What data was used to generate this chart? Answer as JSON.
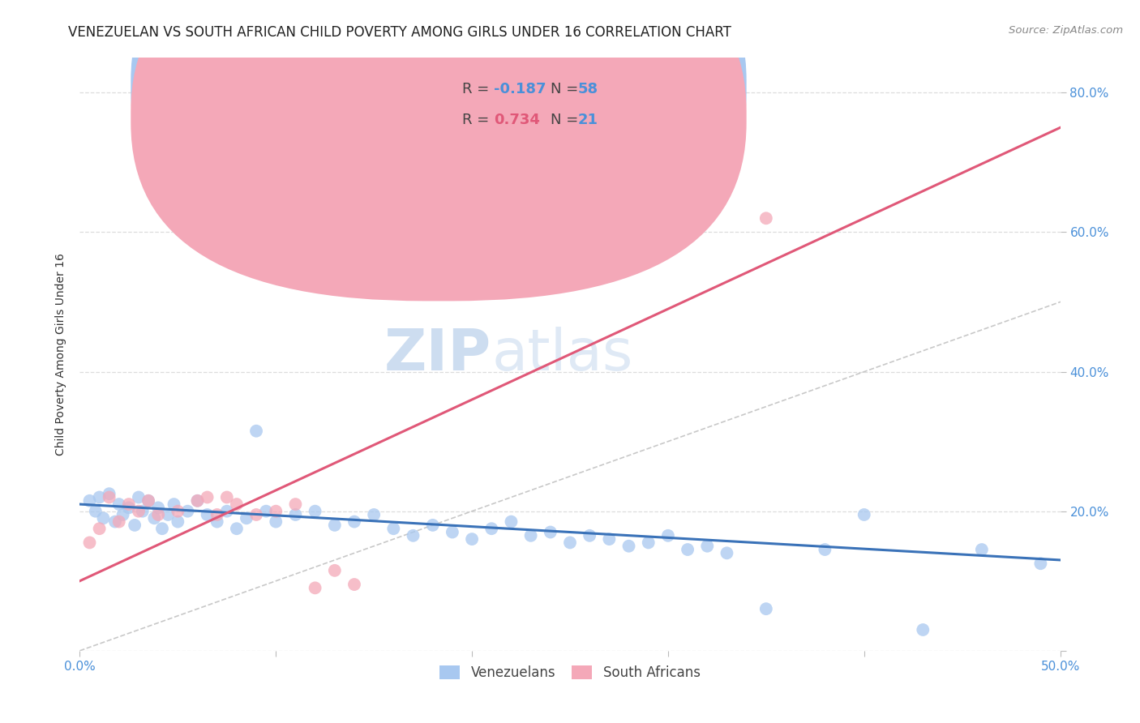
{
  "title": "VENEZUELAN VS SOUTH AFRICAN CHILD POVERTY AMONG GIRLS UNDER 16 CORRELATION CHART",
  "source": "Source: ZipAtlas.com",
  "ylabel": "Child Poverty Among Girls Under 16",
  "xlim": [
    0.0,
    0.5
  ],
  "ylim": [
    0.0,
    0.85
  ],
  "venezuelan_R": -0.187,
  "venezuelan_N": 58,
  "south_african_R": 0.734,
  "south_african_N": 21,
  "venezuelan_color": "#A8C8F0",
  "south_african_color": "#F4A8B8",
  "venezuelan_line_color": "#3A72B8",
  "south_african_line_color": "#E05878",
  "diagonal_color": "#BBBBBB",
  "background_color": "#FFFFFF",
  "grid_color": "#DDDDDD",
  "watermark_zip": "ZIP",
  "watermark_atlas": "atlas",
  "title_fontsize": 12,
  "axis_label_fontsize": 10,
  "tick_fontsize": 11,
  "legend_fontsize": 13,
  "watermark_fontsize": 52,
  "ven_x": [
    0.005,
    0.008,
    0.01,
    0.012,
    0.015,
    0.018,
    0.02,
    0.022,
    0.025,
    0.028,
    0.03,
    0.032,
    0.035,
    0.038,
    0.04,
    0.042,
    0.045,
    0.048,
    0.05,
    0.055,
    0.06,
    0.065,
    0.07,
    0.075,
    0.08,
    0.085,
    0.09,
    0.095,
    0.1,
    0.11,
    0.12,
    0.13,
    0.14,
    0.15,
    0.16,
    0.17,
    0.18,
    0.19,
    0.2,
    0.21,
    0.22,
    0.23,
    0.24,
    0.25,
    0.26,
    0.27,
    0.28,
    0.29,
    0.3,
    0.31,
    0.32,
    0.33,
    0.35,
    0.38,
    0.4,
    0.43,
    0.46,
    0.49
  ],
  "ven_y": [
    0.215,
    0.2,
    0.22,
    0.19,
    0.225,
    0.185,
    0.21,
    0.195,
    0.205,
    0.18,
    0.22,
    0.2,
    0.215,
    0.19,
    0.205,
    0.175,
    0.195,
    0.21,
    0.185,
    0.2,
    0.215,
    0.195,
    0.185,
    0.2,
    0.175,
    0.19,
    0.315,
    0.2,
    0.185,
    0.195,
    0.2,
    0.18,
    0.185,
    0.195,
    0.175,
    0.165,
    0.18,
    0.17,
    0.16,
    0.175,
    0.185,
    0.165,
    0.17,
    0.155,
    0.165,
    0.16,
    0.15,
    0.155,
    0.165,
    0.145,
    0.15,
    0.14,
    0.06,
    0.145,
    0.195,
    0.03,
    0.145,
    0.125
  ],
  "sa_x": [
    0.005,
    0.01,
    0.015,
    0.02,
    0.025,
    0.03,
    0.035,
    0.04,
    0.05,
    0.06,
    0.065,
    0.07,
    0.075,
    0.08,
    0.09,
    0.1,
    0.11,
    0.12,
    0.13,
    0.14,
    0.35
  ],
  "sa_y": [
    0.155,
    0.175,
    0.22,
    0.185,
    0.21,
    0.2,
    0.215,
    0.195,
    0.2,
    0.215,
    0.22,
    0.195,
    0.22,
    0.21,
    0.195,
    0.2,
    0.21,
    0.09,
    0.115,
    0.095,
    0.62
  ]
}
